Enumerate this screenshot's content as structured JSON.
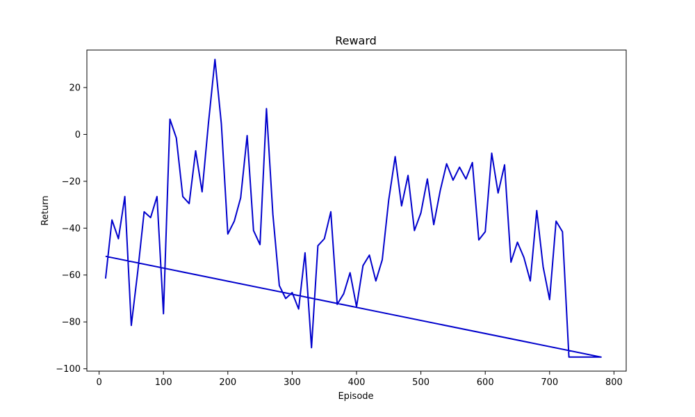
{
  "chart_data": {
    "type": "line",
    "title": "Reward",
    "xlabel": "Episode",
    "ylabel": "Return",
    "xlim": [
      -19,
      819
    ],
    "ylim": [
      -101,
      36
    ],
    "xticks": [
      0,
      100,
      200,
      300,
      400,
      500,
      600,
      700,
      800
    ],
    "yticks": [
      -100,
      -80,
      -60,
      -40,
      -20,
      0,
      20
    ],
    "grid": false,
    "color": "#0000cc",
    "series": [
      {
        "points": [
          [
            10,
            -61.5
          ],
          [
            20,
            -36.5
          ],
          [
            30,
            -44.5
          ],
          [
            40,
            -26.5
          ],
          [
            50,
            -81.5
          ],
          [
            60,
            -58.5
          ],
          [
            70,
            -33
          ],
          [
            80,
            -35.5
          ],
          [
            90,
            -26.5
          ],
          [
            100,
            -76.5
          ],
          [
            110,
            6.5
          ],
          [
            120,
            -1.5
          ],
          [
            130,
            -26.5
          ],
          [
            140,
            -29.5
          ],
          [
            150,
            -7
          ],
          [
            160,
            -24.5
          ],
          [
            170,
            5
          ],
          [
            180,
            32
          ],
          [
            190,
            4.5
          ],
          [
            200,
            -42.5
          ],
          [
            210,
            -37
          ],
          [
            220,
            -27
          ],
          [
            230,
            -0.5
          ],
          [
            240,
            -41
          ],
          [
            250,
            -47
          ],
          [
            260,
            11
          ],
          [
            270,
            -34
          ],
          [
            280,
            -64.5
          ],
          [
            290,
            -70
          ],
          [
            300,
            -67.5
          ],
          [
            310,
            -74.5
          ],
          [
            320,
            -50.5
          ],
          [
            330,
            -91
          ],
          [
            340,
            -47.5
          ],
          [
            350,
            -44.5
          ],
          [
            360,
            -33
          ],
          [
            370,
            -72.5
          ],
          [
            380,
            -68
          ],
          [
            390,
            -59
          ],
          [
            400,
            -73.5
          ],
          [
            410,
            -56
          ],
          [
            420,
            -51.5
          ],
          [
            430,
            -62.5
          ],
          [
            440,
            -53.5
          ],
          [
            450,
            -28
          ],
          [
            460,
            -9.5
          ],
          [
            470,
            -30.5
          ],
          [
            480,
            -17.5
          ],
          [
            490,
            -41
          ],
          [
            500,
            -33.5
          ],
          [
            510,
            -19
          ],
          [
            520,
            -38.5
          ],
          [
            530,
            -24
          ],
          [
            540,
            -12.5
          ],
          [
            550,
            -19.5
          ],
          [
            560,
            -14
          ],
          [
            570,
            -19
          ],
          [
            580,
            -12
          ],
          [
            590,
            -45
          ],
          [
            600,
            -41.5
          ],
          [
            610,
            -8
          ],
          [
            620,
            -25
          ],
          [
            630,
            -13
          ],
          [
            640,
            -54.5
          ],
          [
            650,
            -46
          ],
          [
            660,
            -52.5
          ],
          [
            670,
            -62.5
          ],
          [
            680,
            -32.5
          ],
          [
            690,
            -56.5
          ],
          [
            700,
            -70.5
          ],
          [
            710,
            -37
          ],
          [
            720,
            -41.5
          ],
          [
            730,
            -95
          ],
          [
            740,
            -95
          ],
          [
            750,
            -95
          ],
          [
            760,
            -95
          ],
          [
            770,
            -95
          ],
          [
            780,
            -95
          ],
          [
            10,
            -52
          ]
        ]
      }
    ]
  }
}
